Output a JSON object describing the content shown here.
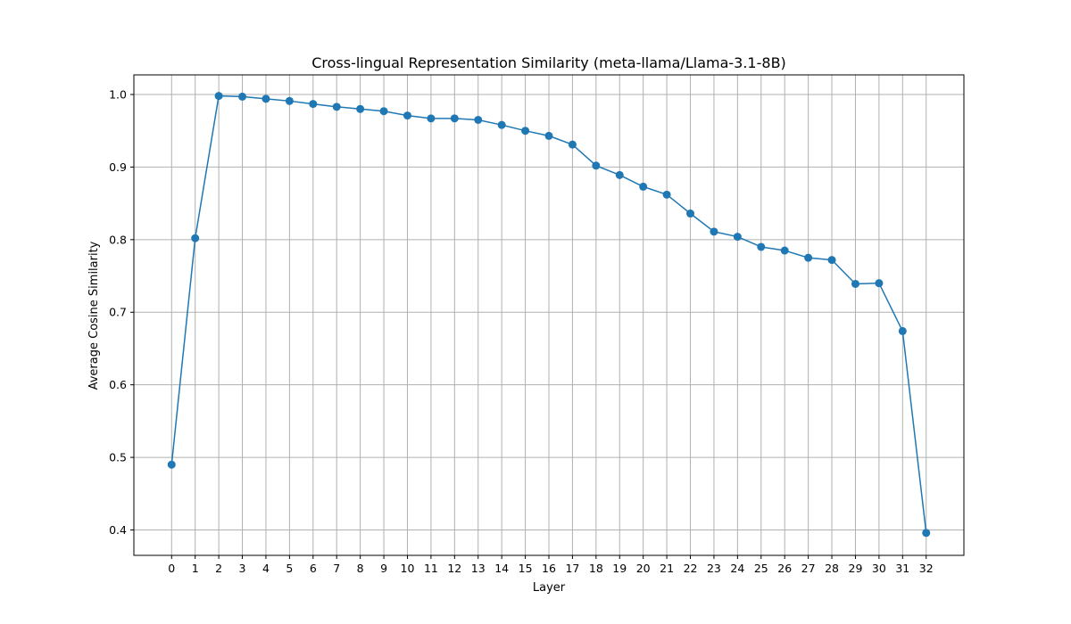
{
  "chart_data": {
    "type": "line",
    "title": "Cross-lingual Representation Similarity (meta-llama/Llama-3.1-8B)",
    "xlabel": "Layer",
    "ylabel": "Average Cosine Similarity",
    "x": [
      0,
      1,
      2,
      3,
      4,
      5,
      6,
      7,
      8,
      9,
      10,
      11,
      12,
      13,
      14,
      15,
      16,
      17,
      18,
      19,
      20,
      21,
      22,
      23,
      24,
      25,
      26,
      27,
      28,
      29,
      30,
      31,
      32
    ],
    "xticks": [
      "0",
      "1",
      "2",
      "3",
      "4",
      "5",
      "6",
      "7",
      "8",
      "9",
      "10",
      "11",
      "12",
      "13",
      "14",
      "15",
      "16",
      "17",
      "18",
      "19",
      "20",
      "21",
      "22",
      "23",
      "24",
      "25",
      "26",
      "27",
      "28",
      "29",
      "30",
      "31",
      "32"
    ],
    "yticks": [
      0.4,
      0.5,
      0.6,
      0.7,
      0.8,
      0.9,
      1.0
    ],
    "ytick_labels": [
      "0.4",
      "0.5",
      "0.6",
      "0.7",
      "0.8",
      "0.9",
      "1.0"
    ],
    "xlim": [
      -1.6,
      33.6
    ],
    "ylim": [
      0.365,
      1.027
    ],
    "grid": true,
    "series": [
      {
        "color": "#1f77b4",
        "marker": "circle",
        "values": [
          0.49,
          0.802,
          0.998,
          0.997,
          0.994,
          0.991,
          0.987,
          0.983,
          0.98,
          0.977,
          0.971,
          0.967,
          0.967,
          0.965,
          0.958,
          0.95,
          0.943,
          0.931,
          0.902,
          0.889,
          0.873,
          0.862,
          0.836,
          0.811,
          0.804,
          0.79,
          0.785,
          0.775,
          0.772,
          0.739,
          0.74,
          0.674,
          0.396
        ]
      }
    ]
  }
}
